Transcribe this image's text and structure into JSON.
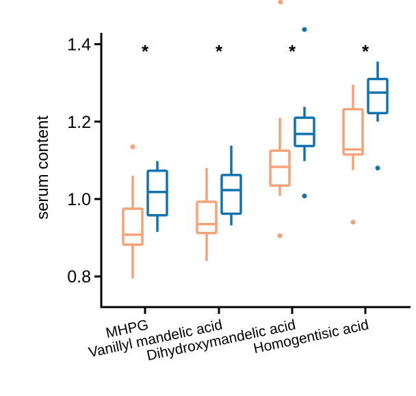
{
  "chart_data": {
    "type": "box",
    "title": "",
    "xlabel": "",
    "ylabel": "serum content",
    "ylim": [
      0.72,
      1.43
    ],
    "yticks": [
      0.8,
      1.0,
      1.2,
      1.4
    ],
    "ytick_labels": [
      "0.8",
      "1.0",
      "1.2",
      "1.4"
    ],
    "categories": [
      "MHPG",
      "Vanillyl mandelic acid",
      "Dihydroxymandelic acid",
      "Homogentisic acid"
    ],
    "significance": [
      "*",
      "*",
      "*",
      "*"
    ],
    "colors": {
      "group1": "#F4A277",
      "group2": "#1272AE",
      "axis": "#000000"
    },
    "series": [
      {
        "color": "#F4A277",
        "boxes": [
          {
            "whisker_low": 0.795,
            "q1": 0.882,
            "median": 0.908,
            "q3": 0.975,
            "whisker_high": 1.06,
            "outliers": [
              1.135
            ]
          },
          {
            "whisker_low": 0.84,
            "q1": 0.912,
            "median": 0.935,
            "q3": 0.993,
            "whisker_high": 1.08,
            "outliers": []
          },
          {
            "whisker_low": 1.008,
            "q1": 1.035,
            "median": 1.083,
            "q3": 1.125,
            "whisker_high": 1.21,
            "outliers": [
              0.905
            ]
          },
          {
            "whisker_low": 1.075,
            "q1": 1.115,
            "median": 1.128,
            "q3": 1.232,
            "whisker_high": 1.295,
            "outliers": [
              0.94
            ]
          }
        ]
      },
      {
        "color": "#1272AE",
        "boxes": [
          {
            "whisker_low": 0.915,
            "q1": 0.958,
            "median": 1.018,
            "q3": 1.073,
            "whisker_high": 1.098,
            "outliers": []
          },
          {
            "whisker_low": 0.932,
            "q1": 0.962,
            "median": 1.023,
            "q3": 1.062,
            "whisker_high": 1.138,
            "outliers": []
          },
          {
            "whisker_low": 1.098,
            "q1": 1.137,
            "median": 1.168,
            "q3": 1.21,
            "whisker_high": 1.238,
            "outliers": [
              1.008,
              1.438
            ]
          },
          {
            "whisker_low": 1.2,
            "q1": 1.222,
            "median": 1.275,
            "q3": 1.31,
            "whisker_high": 1.355,
            "outliers": [
              1.08
            ]
          }
        ]
      }
    ],
    "clipped_outliers": [
      {
        "series": 0,
        "category": 2,
        "value": 1.5
      }
    ]
  }
}
